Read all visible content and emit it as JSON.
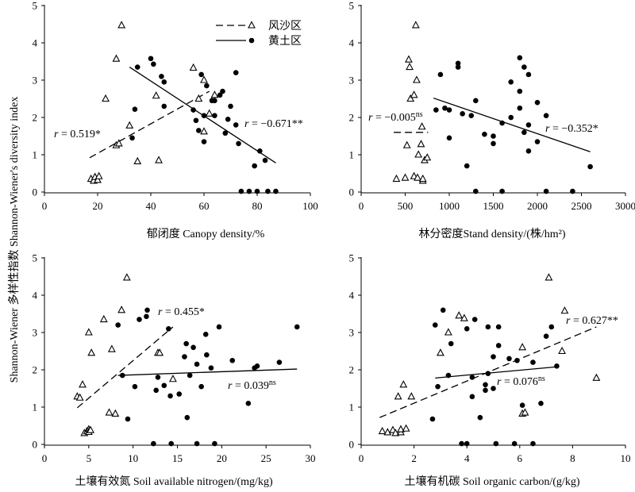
{
  "figure": {
    "ylabel": "Shannon-Wiener 多样性指数 Shannon-Wiener's diversity index",
    "legend": {
      "entries": [
        {
          "label": "风沙区",
          "marker": "triangle",
          "line": "dashed"
        },
        {
          "label": "黄土区",
          "marker": "circle",
          "line": "solid"
        }
      ],
      "position": "top-right of first panel"
    }
  },
  "chart_data": [
    {
      "type": "scatter",
      "xlabel": "郁闭度 Canopy density/%",
      "ylabel": "",
      "xlim": [
        0,
        100
      ],
      "ylim": [
        0,
        5
      ],
      "xticks": [
        0,
        20,
        40,
        60,
        80,
        100
      ],
      "yticks": [
        0,
        1,
        2,
        3,
        4,
        5
      ],
      "series": [
        {
          "name": "风沙区",
          "marker": "triangle",
          "points": [
            [
              17.5,
              0.35
            ],
            [
              18.5,
              0.3
            ],
            [
              19,
              0.4
            ],
            [
              20,
              0.32
            ],
            [
              20.5,
              0.42
            ],
            [
              23,
              2.5
            ],
            [
              27,
              1.25
            ],
            [
              28,
              1.3
            ],
            [
              27,
              3.57
            ],
            [
              29,
              4.47
            ],
            [
              32,
              1.78
            ],
            [
              35,
              0.82
            ],
            [
              42,
              2.58
            ],
            [
              43,
              0.85
            ],
            [
              56,
              3.33
            ],
            [
              58,
              2.5
            ],
            [
              60,
              3.0
            ],
            [
              60,
              1.62
            ],
            [
              62,
              2.1
            ],
            [
              64,
              2.6
            ]
          ]
        },
        {
          "name": "黄土区",
          "marker": "circle",
          "points": [
            [
              33,
              1.45
            ],
            [
              34,
              2.22
            ],
            [
              35,
              3.35
            ],
            [
              40,
              3.58
            ],
            [
              41,
              3.43
            ],
            [
              44,
              3.1
            ],
            [
              45,
              2.95
            ],
            [
              45,
              2.3
            ],
            [
              56,
              2.2
            ],
            [
              57,
              1.92
            ],
            [
              58,
              1.65
            ],
            [
              59,
              3.15
            ],
            [
              60,
              2.05
            ],
            [
              60,
              1.35
            ],
            [
              61,
              2.85
            ],
            [
              63,
              2.45
            ],
            [
              64,
              2.05
            ],
            [
              64,
              2.45
            ],
            [
              66,
              2.6
            ],
            [
              67,
              2.7
            ],
            [
              68,
              1.58
            ],
            [
              69,
              1.95
            ],
            [
              70,
              2.3
            ],
            [
              72,
              3.2
            ],
            [
              72,
              1.8
            ],
            [
              73,
              1.3
            ],
            [
              74,
              0.02
            ],
            [
              77,
              0.02
            ],
            [
              79,
              0.7
            ],
            [
              80,
              0.02
            ],
            [
              81,
              1.1
            ],
            [
              83,
              0.85
            ],
            [
              84,
              0.02
            ],
            [
              87,
              0.02
            ]
          ]
        }
      ],
      "fits": [
        {
          "series": "风沙区",
          "style": "dashed",
          "from": [
            17,
            0.92
          ],
          "to": [
            62,
            2.7
          ],
          "label": "r = 0.519*"
        },
        {
          "series": "黄土区",
          "style": "solid",
          "from": [
            32,
            3.35
          ],
          "to": [
            87,
            0.78
          ],
          "label": "r = −0.671**"
        }
      ]
    },
    {
      "type": "scatter",
      "xlabel": "林分密度Stand density/(株/hm²)",
      "ylabel": "",
      "xlim": [
        0,
        3000
      ],
      "ylim": [
        0,
        5
      ],
      "xticks": [
        0,
        500,
        1000,
        1500,
        2000,
        2500,
        3000
      ],
      "yticks": [
        0,
        1,
        2,
        3,
        4,
        5
      ],
      "series": [
        {
          "name": "风沙区",
          "marker": "triangle",
          "points": [
            [
              400,
              0.35
            ],
            [
              500,
              0.38
            ],
            [
              520,
              1.25
            ],
            [
              540,
              3.55
            ],
            [
              550,
              3.35
            ],
            [
              560,
              2.5
            ],
            [
              600,
              0.42
            ],
            [
              600,
              2.6
            ],
            [
              620,
              4.47
            ],
            [
              630,
              3.0
            ],
            [
              640,
              0.38
            ],
            [
              650,
              1.0
            ],
            [
              680,
              1.28
            ],
            [
              690,
              1.75
            ],
            [
              700,
              0.3
            ],
            [
              700,
              0.35
            ],
            [
              720,
              0.85
            ],
            [
              750,
              0.92
            ]
          ]
        },
        {
          "name": "黄土区",
          "marker": "circle",
          "points": [
            [
              850,
              2.2
            ],
            [
              900,
              3.15
            ],
            [
              950,
              2.25
            ],
            [
              1000,
              1.45
            ],
            [
              1000,
              2.2
            ],
            [
              1100,
              3.45
            ],
            [
              1100,
              3.35
            ],
            [
              1150,
              2.1
            ],
            [
              1200,
              0.7
            ],
            [
              1250,
              2.05
            ],
            [
              1300,
              0.02
            ],
            [
              1300,
              2.45
            ],
            [
              1400,
              1.55
            ],
            [
              1500,
              1.5
            ],
            [
              1500,
              1.3
            ],
            [
              1600,
              0.02
            ],
            [
              1600,
              1.85
            ],
            [
              1700,
              2.95
            ],
            [
              1700,
              2.0
            ],
            [
              1800,
              2.25
            ],
            [
              1800,
              3.6
            ],
            [
              1850,
              3.35
            ],
            [
              1800,
              2.7
            ],
            [
              1850,
              1.6
            ],
            [
              1900,
              1.1
            ],
            [
              1900,
              3.15
            ],
            [
              1900,
              1.8
            ],
            [
              2000,
              2.4
            ],
            [
              2000,
              1.35
            ],
            [
              2100,
              2.05
            ],
            [
              2100,
              0.02
            ],
            [
              2400,
              0.02
            ],
            [
              2600,
              0.68
            ]
          ]
        }
      ],
      "fits": [
        {
          "series": "风沙区",
          "style": "dashed",
          "from": [
            370,
            1.6
          ],
          "to": [
            760,
            1.6
          ],
          "label": "r = −0.005ns"
        },
        {
          "series": "黄土区",
          "style": "solid",
          "from": [
            820,
            2.52
          ],
          "to": [
            2600,
            1.08
          ],
          "label": "r = −0.352*"
        }
      ]
    },
    {
      "type": "scatter",
      "xlabel": "土壤有效氮 Soil available nitrogen/(mg/kg)",
      "ylabel": "",
      "xlim": [
        0,
        30
      ],
      "ylim": [
        0,
        5
      ],
      "xticks": [
        0,
        5,
        10,
        15,
        20,
        25,
        30
      ],
      "yticks": [
        0,
        1,
        2,
        3,
        4,
        5
      ],
      "series": [
        {
          "name": "风沙区",
          "marker": "triangle",
          "points": [
            [
              3.7,
              1.28
            ],
            [
              4,
              1.25
            ],
            [
              4.3,
              1.6
            ],
            [
              4.5,
              0.3
            ],
            [
              4.8,
              0.35
            ],
            [
              5,
              0.4
            ],
            [
              5,
              0.33
            ],
            [
              5.2,
              0.38
            ],
            [
              5,
              3.0
            ],
            [
              5.3,
              2.45
            ],
            [
              6.7,
              3.35
            ],
            [
              7.3,
              0.85
            ],
            [
              7.6,
              2.55
            ],
            [
              8,
              0.82
            ],
            [
              8.7,
              3.6
            ],
            [
              9.3,
              4.47
            ],
            [
              12.8,
              2.45
            ],
            [
              13,
              2.45
            ],
            [
              14.5,
              1.75
            ]
          ]
        },
        {
          "name": "黄土区",
          "marker": "circle",
          "points": [
            [
              8.3,
              3.2
            ],
            [
              8.8,
              1.85
            ],
            [
              9.4,
              0.68
            ],
            [
              10.2,
              1.55
            ],
            [
              10.7,
              3.35
            ],
            [
              11.5,
              3.43
            ],
            [
              11.6,
              3.6
            ],
            [
              12.3,
              0.02
            ],
            [
              12.6,
              1.45
            ],
            [
              12.8,
              1.8
            ],
            [
              13.5,
              1.58
            ],
            [
              14,
              3.1
            ],
            [
              14.2,
              1.3
            ],
            [
              14.3,
              0.02
            ],
            [
              15.2,
              1.35
            ],
            [
              15.8,
              2.35
            ],
            [
              16,
              2.7
            ],
            [
              16.1,
              0.72
            ],
            [
              16.4,
              1.85
            ],
            [
              16.8,
              2.6
            ],
            [
              17.2,
              2.15
            ],
            [
              17.2,
              0.02
            ],
            [
              17.7,
              1.55
            ],
            [
              18.2,
              2.95
            ],
            [
              18.3,
              2.4
            ],
            [
              18.8,
              2.05
            ],
            [
              19.2,
              0.02
            ],
            [
              19.7,
              3.15
            ],
            [
              21.2,
              2.25
            ],
            [
              23,
              1.1
            ],
            [
              23.7,
              2.05
            ],
            [
              24,
              2.1
            ],
            [
              26.5,
              2.2
            ],
            [
              28.5,
              3.15
            ]
          ]
        }
      ],
      "fits": [
        {
          "series": "风沙区",
          "style": "dashed",
          "from": [
            3.7,
            0.98
          ],
          "to": [
            14.5,
            3.15
          ],
          "label": "r = 0.455*"
        },
        {
          "series": "黄土区",
          "style": "solid",
          "from": [
            8.3,
            1.85
          ],
          "to": [
            28.5,
            2.02
          ],
          "label": "r = 0.039ns"
        }
      ]
    },
    {
      "type": "scatter",
      "xlabel": "土壤有机碳 Soil organic carbon/(g/kg)",
      "ylabel": "",
      "xlim": [
        0,
        10
      ],
      "ylim": [
        0,
        5
      ],
      "xticks": [
        0,
        2,
        4,
        6,
        8,
        10
      ],
      "yticks": [
        0,
        1,
        2,
        3,
        4,
        5
      ],
      "series": [
        {
          "name": "风沙区",
          "marker": "triangle",
          "points": [
            [
              0.8,
              0.35
            ],
            [
              1.0,
              0.32
            ],
            [
              1.2,
              0.38
            ],
            [
              1.3,
              0.3
            ],
            [
              1.4,
              1.28
            ],
            [
              1.5,
              0.32
            ],
            [
              1.5,
              0.4
            ],
            [
              1.6,
              1.6
            ],
            [
              1.7,
              0.42
            ],
            [
              1.9,
              1.28
            ],
            [
              3.0,
              2.45
            ],
            [
              3.3,
              3.0
            ],
            [
              3.7,
              3.45
            ],
            [
              3.9,
              3.38
            ],
            [
              6.1,
              2.6
            ],
            [
              6.1,
              0.82
            ],
            [
              6.2,
              0.85
            ],
            [
              7.1,
              4.47
            ],
            [
              7.6,
              2.5
            ],
            [
              7.7,
              3.58
            ],
            [
              8.9,
              1.78
            ]
          ]
        },
        {
          "name": "黄土区",
          "marker": "circle",
          "points": [
            [
              2.7,
              0.68
            ],
            [
              2.8,
              3.2
            ],
            [
              2.9,
              1.55
            ],
            [
              3.1,
              3.6
            ],
            [
              3.3,
              1.85
            ],
            [
              3.4,
              2.7
            ],
            [
              3.8,
              0.02
            ],
            [
              4.0,
              0.02
            ],
            [
              4.0,
              3.1
            ],
            [
              4.2,
              1.8
            ],
            [
              4.2,
              1.28
            ],
            [
              4.3,
              3.35
            ],
            [
              4.5,
              0.72
            ],
            [
              4.7,
              1.45
            ],
            [
              4.7,
              1.6
            ],
            [
              4.8,
              3.15
            ],
            [
              4.8,
              1.9
            ],
            [
              5.0,
              1.5
            ],
            [
              5.0,
              2.35
            ],
            [
              5.1,
              0.02
            ],
            [
              5.2,
              3.15
            ],
            [
              5.2,
              2.65
            ],
            [
              5.6,
              2.3
            ],
            [
              5.8,
              0.02
            ],
            [
              5.9,
              2.25
            ],
            [
              6.1,
              1.05
            ],
            [
              6.5,
              2.2
            ],
            [
              6.5,
              0.02
            ],
            [
              6.8,
              1.1
            ],
            [
              7.0,
              2.9
            ],
            [
              7.2,
              3.15
            ],
            [
              7.4,
              2.1
            ]
          ]
        }
      ],
      "fits": [
        {
          "series": "风沙区",
          "style": "dashed",
          "from": [
            0.7,
            0.72
          ],
          "to": [
            8.9,
            3.15
          ],
          "label": "r = 0.627**"
        },
        {
          "series": "黄土区",
          "style": "solid",
          "from": [
            2.8,
            1.78
          ],
          "to": [
            7.4,
            2.08
          ],
          "label": "r = 0.076ns"
        }
      ]
    }
  ]
}
